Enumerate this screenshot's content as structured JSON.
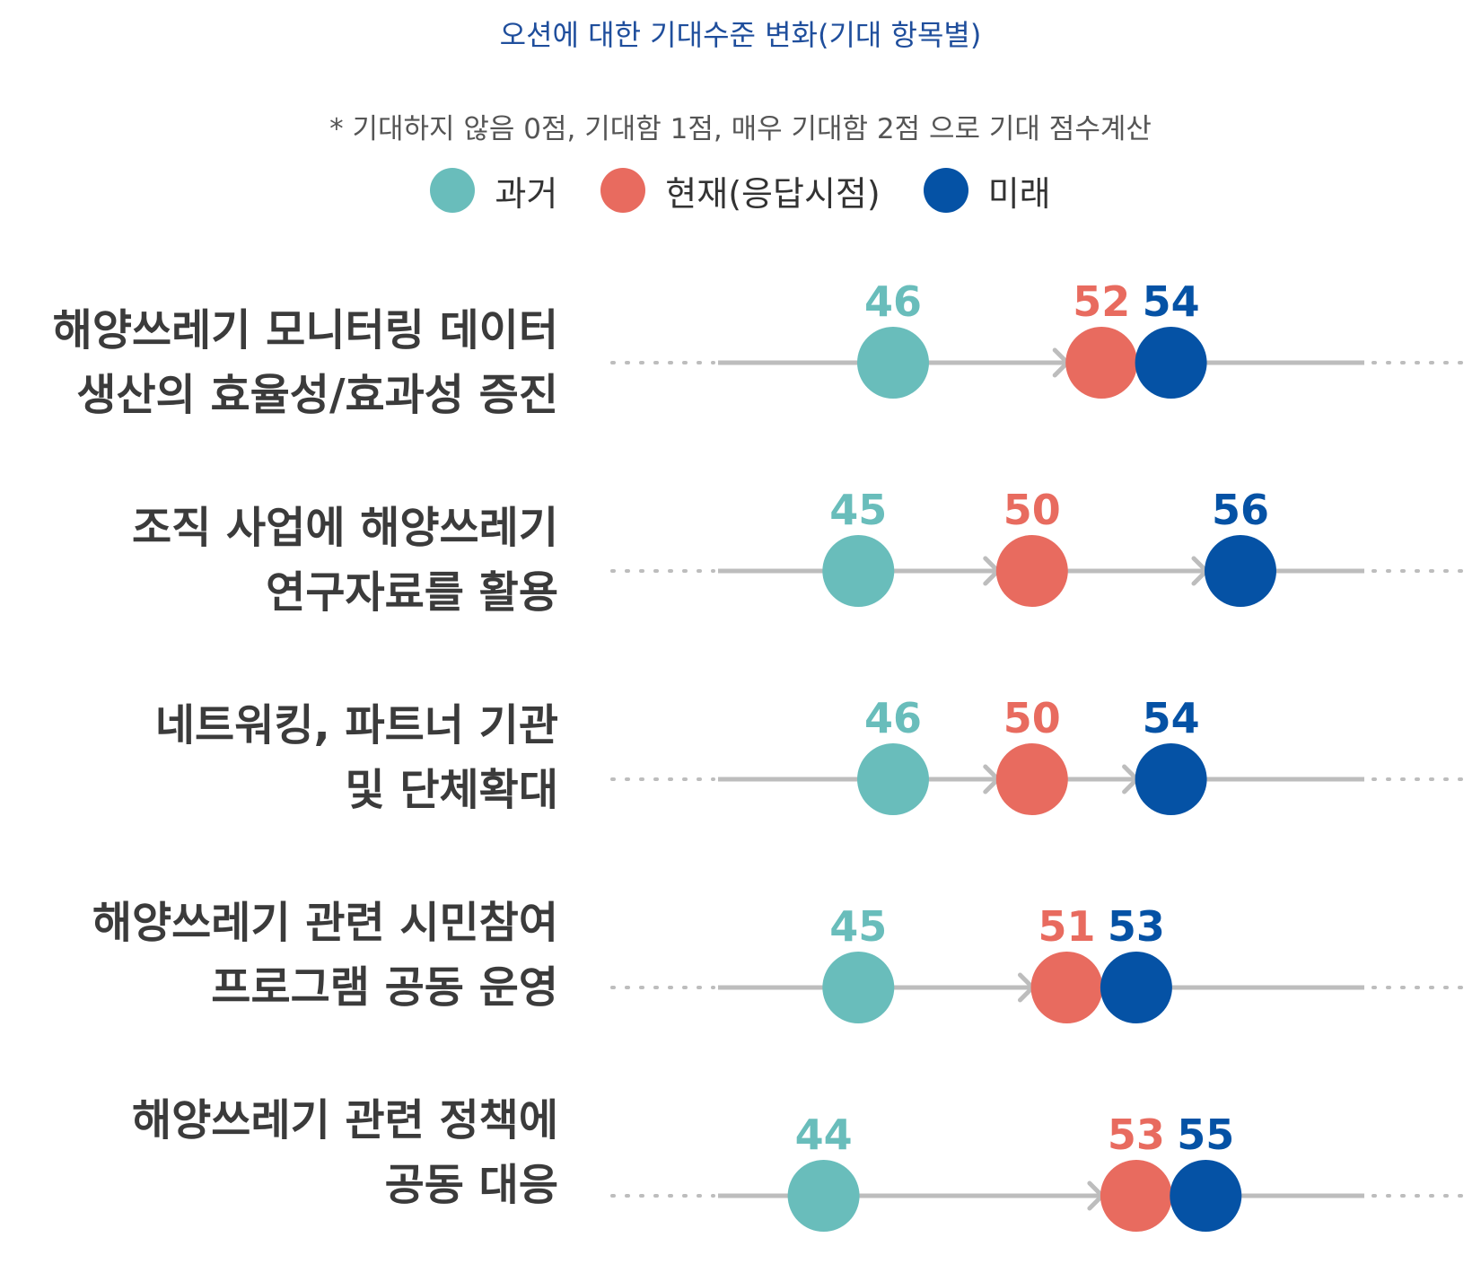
{
  "title": "오션에 대한 기대수준 변화(기대 항목별)",
  "note": "* 기대하지 않음 0점, 기대함 1점, 매우 기대함 2점 으로 기대 점수계산",
  "legend": [
    {
      "label": "과거",
      "color": "#69bdbb"
    },
    {
      "label": "현재(응답시점)",
      "color": "#e86b5f"
    },
    {
      "label": "미래",
      "color": "#0552a5"
    }
  ],
  "chart_data": {
    "type": "dot",
    "categories": [
      [
        "해양쓰레기 모니터링 데이터",
        "생산의 효율성/효과성 증진"
      ],
      [
        "조직 사업에 해양쓰레기",
        "연구자료를 활용"
      ],
      [
        "네트워킹, 파트너 기관",
        "및 단체확대"
      ],
      [
        "해양쓰레기 관련 시민참여",
        "프로그램 공동 운영"
      ],
      [
        "해양쓰레기 관련 정책에",
        "공동 대응"
      ]
    ],
    "series": [
      {
        "name": "과거",
        "color": "#69bdbb",
        "values": [
          46,
          45,
          46,
          45,
          44
        ]
      },
      {
        "name": "현재(응답시점)",
        "color": "#e86b5f",
        "values": [
          52,
          50,
          50,
          51,
          53
        ]
      },
      {
        "name": "미래",
        "color": "#0552a5",
        "values": [
          54,
          56,
          54,
          53,
          55
        ]
      }
    ],
    "grid": false
  }
}
